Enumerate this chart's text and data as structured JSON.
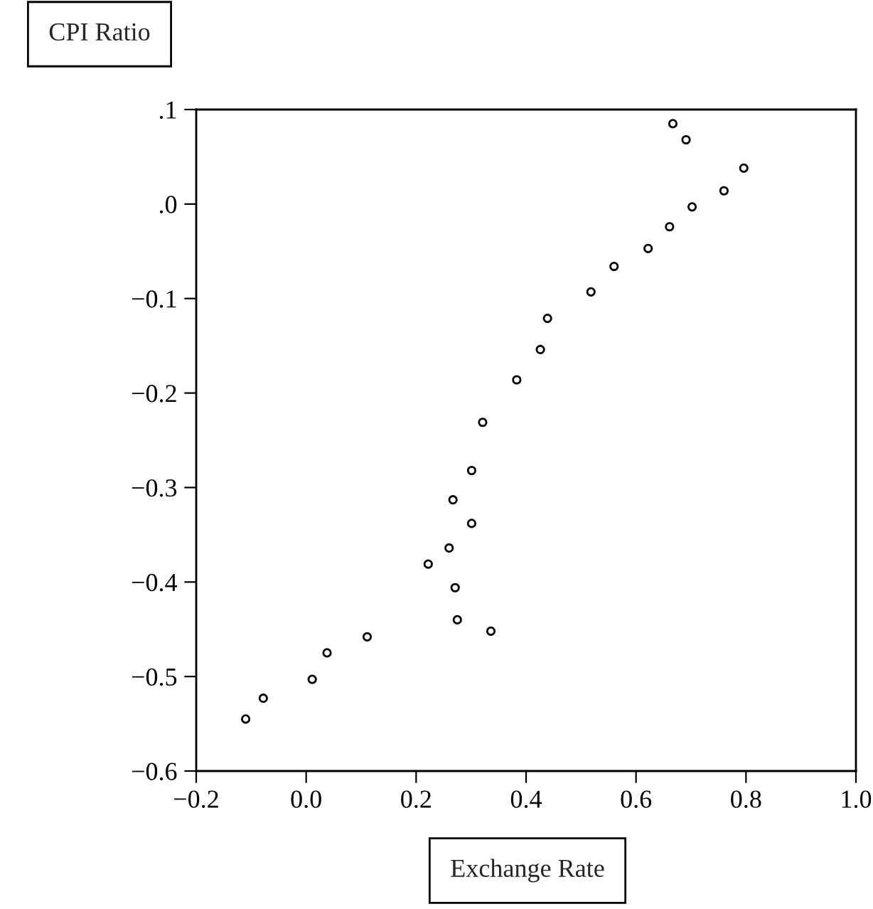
{
  "chart_data": {
    "type": "scatter",
    "xlabel": "Exchange Rate",
    "ylabel": "CPI Ratio",
    "x": [
      0.667,
      0.691,
      0.796,
      0.76,
      0.702,
      0.661,
      0.622,
      0.56,
      0.518,
      0.439,
      0.426,
      0.383,
      0.321,
      0.301,
      0.267,
      0.301,
      0.26,
      0.222,
      0.271,
      0.275,
      0.336,
      0.111,
      0.038,
      0.011,
      -0.078,
      -0.11
    ],
    "values": [
      0.085,
      0.068,
      0.038,
      0.014,
      -0.003,
      -0.024,
      -0.047,
      -0.066,
      -0.093,
      -0.121,
      -0.154,
      -0.186,
      -0.231,
      -0.282,
      -0.313,
      -0.338,
      -0.364,
      -0.381,
      -0.406,
      -0.44,
      -0.452,
      -0.458,
      -0.475,
      -0.503,
      -0.523,
      -0.545
    ],
    "color": "#000000",
    "marker": "circle",
    "grid": false,
    "xlim": [
      -0.2,
      1.0
    ],
    "ylim": [
      -0.6,
      0.1
    ],
    "xticks": [
      {
        "value": -0.2,
        "label": "−0.2"
      },
      {
        "value": 0.0,
        "label": "0.0"
      },
      {
        "value": 0.2,
        "label": "0.2"
      },
      {
        "value": 0.4,
        "label": "0.4"
      },
      {
        "value": 0.6,
        "label": "0.6"
      },
      {
        "value": 0.8,
        "label": "0.8"
      },
      {
        "value": 1.0,
        "label": "1.0"
      }
    ],
    "yticks": [
      {
        "value": -0.6,
        "label": "−0.6"
      },
      {
        "value": -0.5,
        "label": "−0.5"
      },
      {
        "value": -0.4,
        "label": "−0.4"
      },
      {
        "value": -0.3,
        "label": "−0.3"
      },
      {
        "value": -0.2,
        "label": "−0.2"
      },
      {
        "value": -0.1,
        "label": "−0.1"
      },
      {
        "value": 0.0,
        "label": ".0"
      },
      {
        "value": 0.1,
        "label": ".1"
      }
    ]
  }
}
